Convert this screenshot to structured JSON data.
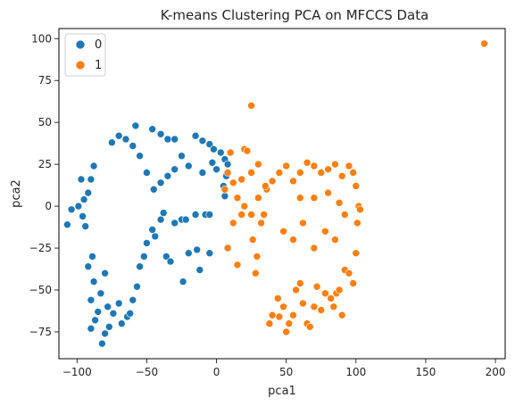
{
  "chart_data": {
    "type": "scatter",
    "title": "K-means Clustering PCA on MFCCS Data",
    "xlabel": "pca1",
    "ylabel": "pca2",
    "xlim": [
      -113,
      207
    ],
    "ylim": [
      -91,
      106
    ],
    "xticks": [
      -100,
      -50,
      0,
      50,
      100,
      150,
      200
    ],
    "yticks": [
      -75,
      -50,
      -25,
      0,
      25,
      50,
      75,
      100
    ],
    "grid": false,
    "legend": {
      "placement": "top-left",
      "entries": [
        "0",
        "1"
      ]
    },
    "colors": {
      "0": "#1f77b4",
      "1": "#ff7f0e"
    },
    "series": [
      {
        "name": "0",
        "color": "#1f77b4",
        "points": [
          [
            -107,
            -11
          ],
          [
            -104,
            -2
          ],
          [
            -99,
            0
          ],
          [
            -96,
            -6
          ],
          [
            -94,
            -12
          ],
          [
            -97,
            16
          ],
          [
            -95,
            4
          ],
          [
            -92,
            8
          ],
          [
            -90,
            16
          ],
          [
            -88,
            24
          ],
          [
            -92,
            -36
          ],
          [
            -89,
            -30
          ],
          [
            -88,
            -45
          ],
          [
            -90,
            -56
          ],
          [
            -87,
            -68
          ],
          [
            -90,
            -73
          ],
          [
            -85,
            -63
          ],
          [
            -82,
            -82
          ],
          [
            -80,
            -76
          ],
          [
            -77,
            -72
          ],
          [
            -83,
            -52
          ],
          [
            -80,
            -40
          ],
          [
            -78,
            -60
          ],
          [
            -74,
            -64
          ],
          [
            -70,
            -58
          ],
          [
            -68,
            -70
          ],
          [
            -64,
            -66
          ],
          [
            -60,
            -56
          ],
          [
            -62,
            -64
          ],
          [
            -57,
            -48
          ],
          [
            -55,
            -36
          ],
          [
            -52,
            -30
          ],
          [
            -50,
            -22
          ],
          [
            -46,
            -14
          ],
          [
            -44,
            -18
          ],
          [
            -40,
            -8
          ],
          [
            -36,
            -30
          ],
          [
            -33,
            -33
          ],
          [
            -24,
            -45
          ],
          [
            -20,
            -28
          ],
          [
            -14,
            -26
          ],
          [
            -12,
            -38
          ],
          [
            -5,
            -28
          ],
          [
            -38,
            -4
          ],
          [
            -30,
            -10
          ],
          [
            -25,
            -8
          ],
          [
            -22,
            -8
          ],
          [
            -15,
            -5
          ],
          [
            -8,
            -5
          ],
          [
            -5,
            -5
          ],
          [
            -58,
            48
          ],
          [
            -46,
            46
          ],
          [
            -40,
            43
          ],
          [
            -35,
            40
          ],
          [
            -30,
            40
          ],
          [
            -15,
            42
          ],
          [
            -10,
            39
          ],
          [
            -5,
            37
          ],
          [
            -2,
            34
          ],
          [
            3,
            32
          ],
          [
            6,
            28
          ],
          [
            8,
            25
          ],
          [
            7,
            18
          ],
          [
            5,
            12
          ],
          [
            6,
            6
          ],
          [
            0,
            22
          ],
          [
            -3,
            26
          ],
          [
            -10,
            20
          ],
          [
            -20,
            24
          ],
          [
            -25,
            30
          ],
          [
            -30,
            22
          ],
          [
            -35,
            18
          ],
          [
            -40,
            14
          ],
          [
            -45,
            10
          ],
          [
            -50,
            20
          ],
          [
            -55,
            30
          ],
          [
            -60,
            36
          ],
          [
            -65,
            40
          ],
          [
            -70,
            42
          ],
          [
            -75,
            38
          ]
        ]
      },
      {
        "name": "1",
        "color": "#ff7f0e",
        "points": [
          [
            192,
            97
          ],
          [
            25,
            60
          ],
          [
            10,
            32
          ],
          [
            8,
            20
          ],
          [
            6,
            10
          ],
          [
            8,
            -25
          ],
          [
            12,
            -10
          ],
          [
            15,
            -35
          ],
          [
            18,
            -5
          ],
          [
            20,
            34
          ],
          [
            22,
            33
          ],
          [
            25,
            20
          ],
          [
            26,
            -20
          ],
          [
            28,
            -40
          ],
          [
            29,
            -30
          ],
          [
            30,
            25
          ],
          [
            32,
            -10
          ],
          [
            34,
            -5
          ],
          [
            36,
            10
          ],
          [
            38,
            -70
          ],
          [
            40,
            -65
          ],
          [
            44,
            -55
          ],
          [
            45,
            -66
          ],
          [
            48,
            -60
          ],
          [
            50,
            -75
          ],
          [
            52,
            -70
          ],
          [
            55,
            -65
          ],
          [
            57,
            -50
          ],
          [
            60,
            -46
          ],
          [
            62,
            -58
          ],
          [
            65,
            -70
          ],
          [
            67,
            -72
          ],
          [
            70,
            -60
          ],
          [
            72,
            -48
          ],
          [
            75,
            -62
          ],
          [
            78,
            -52
          ],
          [
            82,
            -55
          ],
          [
            84,
            -60
          ],
          [
            86,
            -52
          ],
          [
            88,
            -50
          ],
          [
            90,
            -65
          ],
          [
            92,
            -38
          ],
          [
            95,
            -40
          ],
          [
            98,
            -46
          ],
          [
            100,
            -28
          ],
          [
            101,
            -10
          ],
          [
            102,
            0
          ],
          [
            103,
            -2
          ],
          [
            100,
            12
          ],
          [
            98,
            20
          ],
          [
            95,
            24
          ],
          [
            90,
            18
          ],
          [
            85,
            25
          ],
          [
            80,
            22
          ],
          [
            75,
            20
          ],
          [
            70,
            24
          ],
          [
            65,
            26
          ],
          [
            60,
            20
          ],
          [
            55,
            15
          ],
          [
            50,
            24
          ],
          [
            45,
            20
          ],
          [
            40,
            15
          ],
          [
            35,
            12
          ],
          [
            30,
            5
          ],
          [
            25,
            -5
          ],
          [
            20,
            0
          ],
          [
            15,
            5
          ],
          [
            12,
            14
          ],
          [
            18,
            16
          ],
          [
            48,
            -15
          ],
          [
            55,
            -20
          ],
          [
            62,
            -10
          ],
          [
            70,
            -25
          ],
          [
            78,
            -15
          ],
          [
            85,
            -20
          ],
          [
            92,
            -5
          ],
          [
            60,
            5
          ],
          [
            70,
            5
          ],
          [
            80,
            8
          ],
          [
            88,
            2
          ]
        ]
      }
    ]
  }
}
